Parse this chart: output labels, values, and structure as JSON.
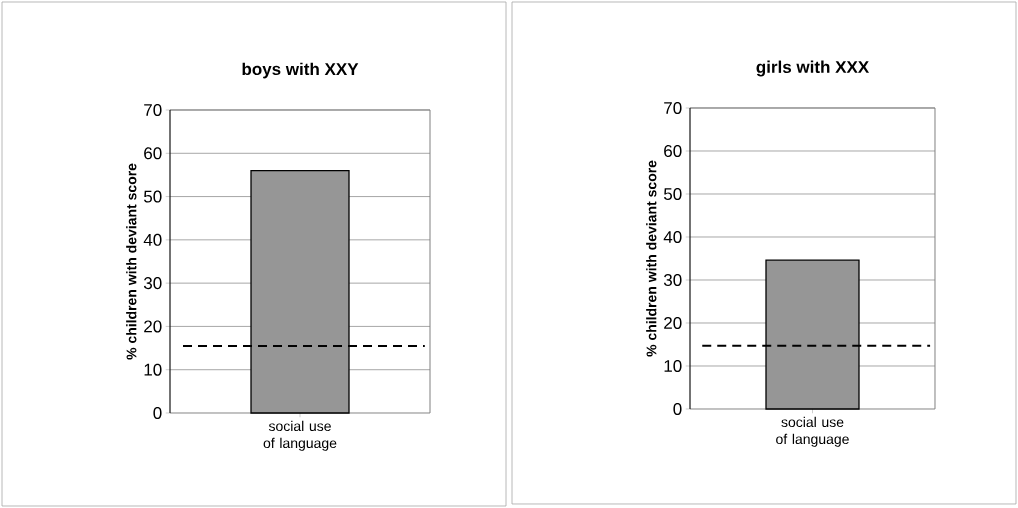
{
  "chart_data": [
    {
      "type": "bar",
      "title": "boys with XXY",
      "ylabel": "% children with deviant score",
      "categories": [
        "social use of language"
      ],
      "values": [
        56
      ],
      "color": "#969696",
      "ylim": [
        0,
        70
      ],
      "yticks": [
        0,
        10,
        20,
        30,
        40,
        50,
        60,
        70
      ],
      "grid": "y",
      "ref_lines": [
        {
          "axis": "y",
          "value": 15.5,
          "color": "#000000",
          "line_style": "dashed"
        }
      ]
    },
    {
      "type": "bar",
      "title": "girls with XXX",
      "ylabel": "% children with deviant score",
      "categories": [
        "social use of language"
      ],
      "values": [
        34.6
      ],
      "color": "#969696",
      "ylim": [
        0,
        70
      ],
      "yticks": [
        0,
        10,
        20,
        30,
        40,
        50,
        60,
        70
      ],
      "grid": "y",
      "ref_lines": [
        {
          "axis": "y",
          "value": 14.7,
          "color": "#000000",
          "line_style": "dashed"
        }
      ]
    }
  ]
}
